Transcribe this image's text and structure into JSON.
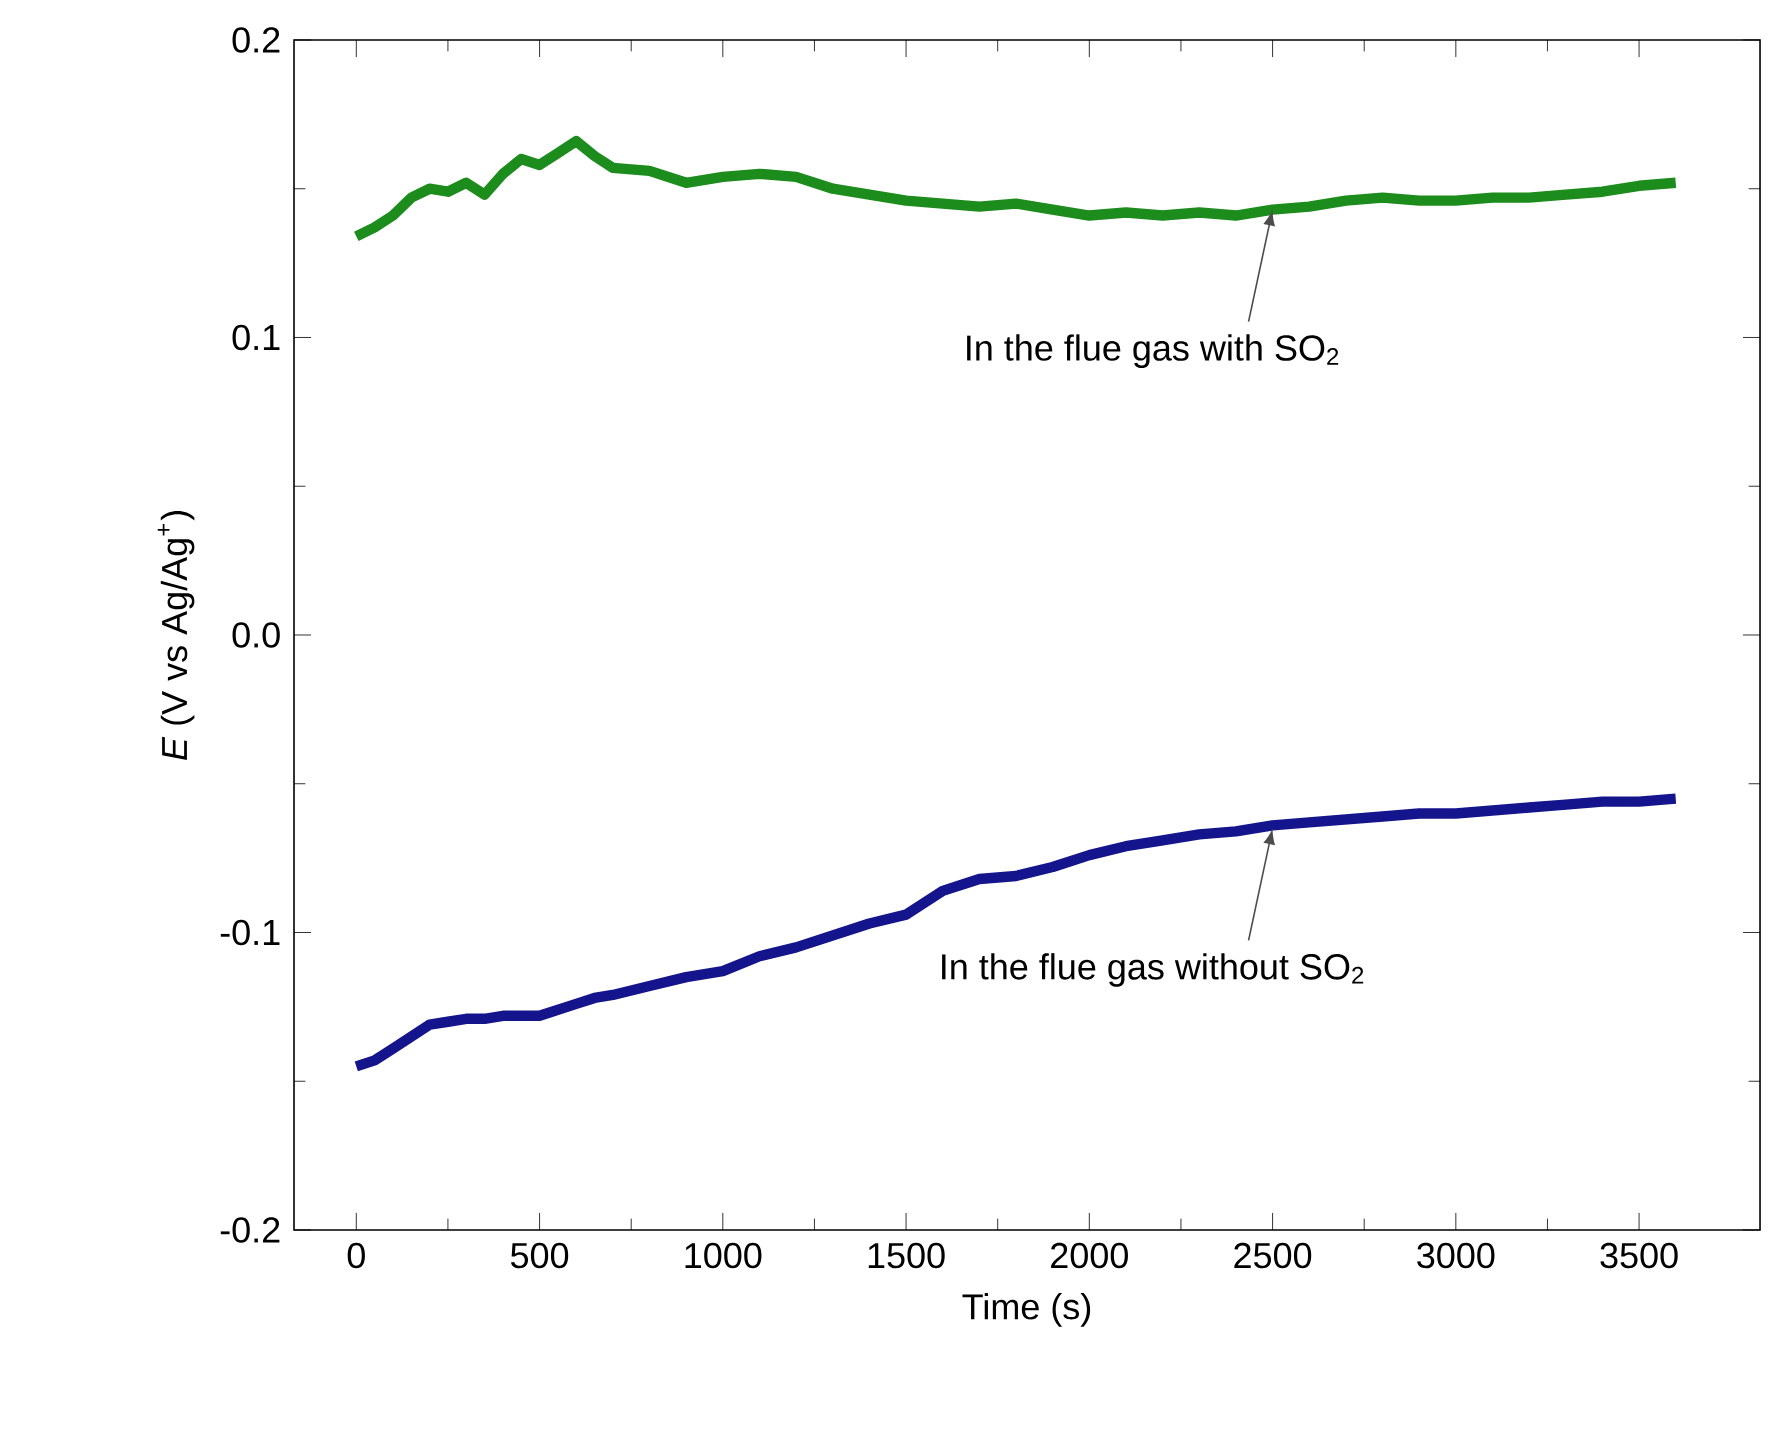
{
  "chart_data": {
    "type": "line",
    "xlabel": "Time (s)",
    "ylabel": "*E* (V vs Ag/Ag$^{+}$)",
    "xlim": [
      -170,
      3830
    ],
    "ylim": [
      -0.2,
      0.2
    ],
    "xticks": [
      0,
      500,
      1000,
      1500,
      2000,
      2500,
      3000,
      3500
    ],
    "yticks": [
      -0.2,
      -0.1,
      {
        "value": 0,
        "label": "0.0"
      },
      0.1,
      0.2
    ],
    "x": [
      0,
      50,
      100,
      150,
      200,
      250,
      300,
      350,
      400,
      450,
      500,
      550,
      600,
      650,
      700,
      800,
      900,
      1000,
      1100,
      1200,
      1300,
      1400,
      1500,
      1600,
      1700,
      1800,
      1900,
      2000,
      2100,
      2200,
      2300,
      2400,
      2500,
      2600,
      2700,
      2800,
      2900,
      3000,
      3100,
      3200,
      3300,
      3400,
      3500,
      3600
    ],
    "series": [
      {
        "color": "#1c8c1c",
        "values": [
          0.134,
          0.137,
          0.141,
          0.147,
          0.15,
          0.149,
          0.152,
          0.148,
          0.155,
          0.16,
          0.158,
          0.162,
          0.166,
          0.161,
          0.157,
          0.156,
          0.152,
          0.154,
          0.155,
          0.154,
          0.15,
          0.148,
          0.146,
          0.145,
          0.144,
          0.145,
          0.143,
          0.141,
          0.142,
          0.141,
          0.142,
          0.141,
          0.143,
          0.144,
          0.146,
          0.147,
          0.146,
          0.146,
          0.147,
          0.147,
          0.148,
          0.149,
          0.151,
          0.152
        ]
      },
      {
        "color": "#14148c",
        "values": [
          -0.145,
          -0.143,
          -0.139,
          -0.135,
          -0.131,
          -0.13,
          -0.129,
          -0.129,
          -0.128,
          -0.128,
          -0.128,
          -0.126,
          -0.124,
          -0.122,
          -0.121,
          -0.118,
          -0.115,
          -0.113,
          -0.108,
          -0.105,
          -0.101,
          -0.097,
          -0.094,
          -0.086,
          -0.082,
          -0.081,
          -0.078,
          -0.074,
          -0.071,
          -0.069,
          -0.067,
          -0.066,
          -0.064,
          -0.063,
          -0.062,
          -0.061,
          -0.06,
          -0.06,
          -0.059,
          -0.058,
          -0.057,
          -0.056,
          -0.056,
          -0.055
        ]
      }
    ],
    "annotations": [
      {
        "text": "In the flue gas with SO$_{2}$",
        "x": 2500,
        "y": 0.143
      },
      {
        "text": "In the flue gas without SO$_{2}$",
        "x": 2500,
        "y": -0.065
      }
    ],
    "grid": false,
    "marker": "none",
    "line_style": "solid"
  }
}
